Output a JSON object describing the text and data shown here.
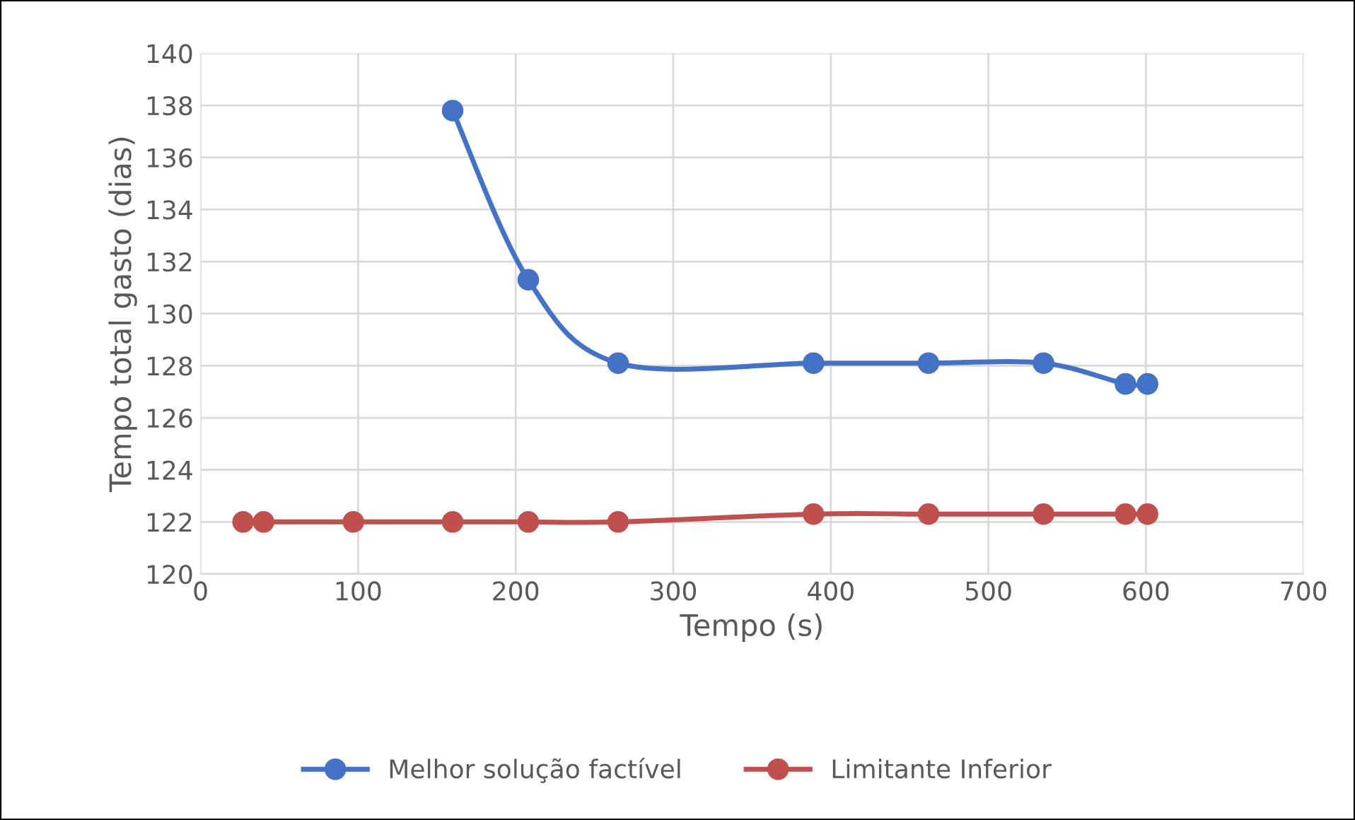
{
  "chart_data": {
    "type": "line",
    "xlabel": "Tempo (s)",
    "ylabel": "Tempo total gasto (dias)",
    "xlim": [
      0,
      700
    ],
    "xticks": [
      0,
      100,
      200,
      300,
      400,
      500,
      600,
      700
    ],
    "ylim": [
      120,
      140
    ],
    "yticks": [
      120,
      122,
      124,
      126,
      128,
      130,
      132,
      134,
      136,
      138,
      140
    ],
    "grid": true,
    "legend": "bottom",
    "marker": "circle",
    "line_style": "solid",
    "series": [
      {
        "name": "Melhor solução factível",
        "color": "#4472c4",
        "x": [
          160,
          208,
          265,
          389,
          462,
          535,
          587,
          601
        ],
        "values": [
          137.8,
          131.3,
          128.1,
          128.1,
          128.1,
          128.1,
          127.3,
          127.3
        ]
      },
      {
        "name": "Limitante Inferior",
        "color": "#c0504d",
        "x": [
          27,
          40,
          97,
          160,
          208,
          265,
          389,
          462,
          535,
          587,
          601
        ],
        "values": [
          122.0,
          122.0,
          122.0,
          122.0,
          122.0,
          122.0,
          122.3,
          122.3,
          122.3,
          122.3,
          122.3
        ]
      }
    ]
  }
}
